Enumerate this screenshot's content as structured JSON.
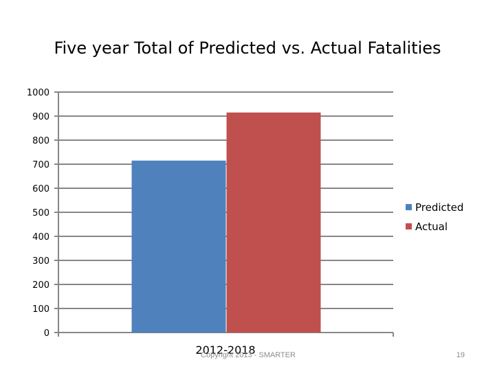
{
  "footer": {
    "copyright": "Copyright 2013 - SMARTER",
    "page_number": "19"
  },
  "colors": {
    "predicted": "#4f81bd",
    "actual": "#c0504d",
    "axis": "#868686"
  },
  "chart_data": {
    "type": "bar",
    "title": "Five year Total of Predicted vs. Actual Fatalities",
    "xlabel": "",
    "ylabel": "",
    "categories": [
      "2012-2018"
    ],
    "series": [
      {
        "name": "Predicted",
        "values": [
          715
        ]
      },
      {
        "name": "Actual",
        "values": [
          915
        ]
      }
    ],
    "ylim": [
      0,
      1000
    ],
    "yticks": [
      "0",
      "100",
      "200",
      "300",
      "400",
      "500",
      "600",
      "700",
      "800",
      "900",
      "1000"
    ],
    "grid": true,
    "legend": "right"
  }
}
